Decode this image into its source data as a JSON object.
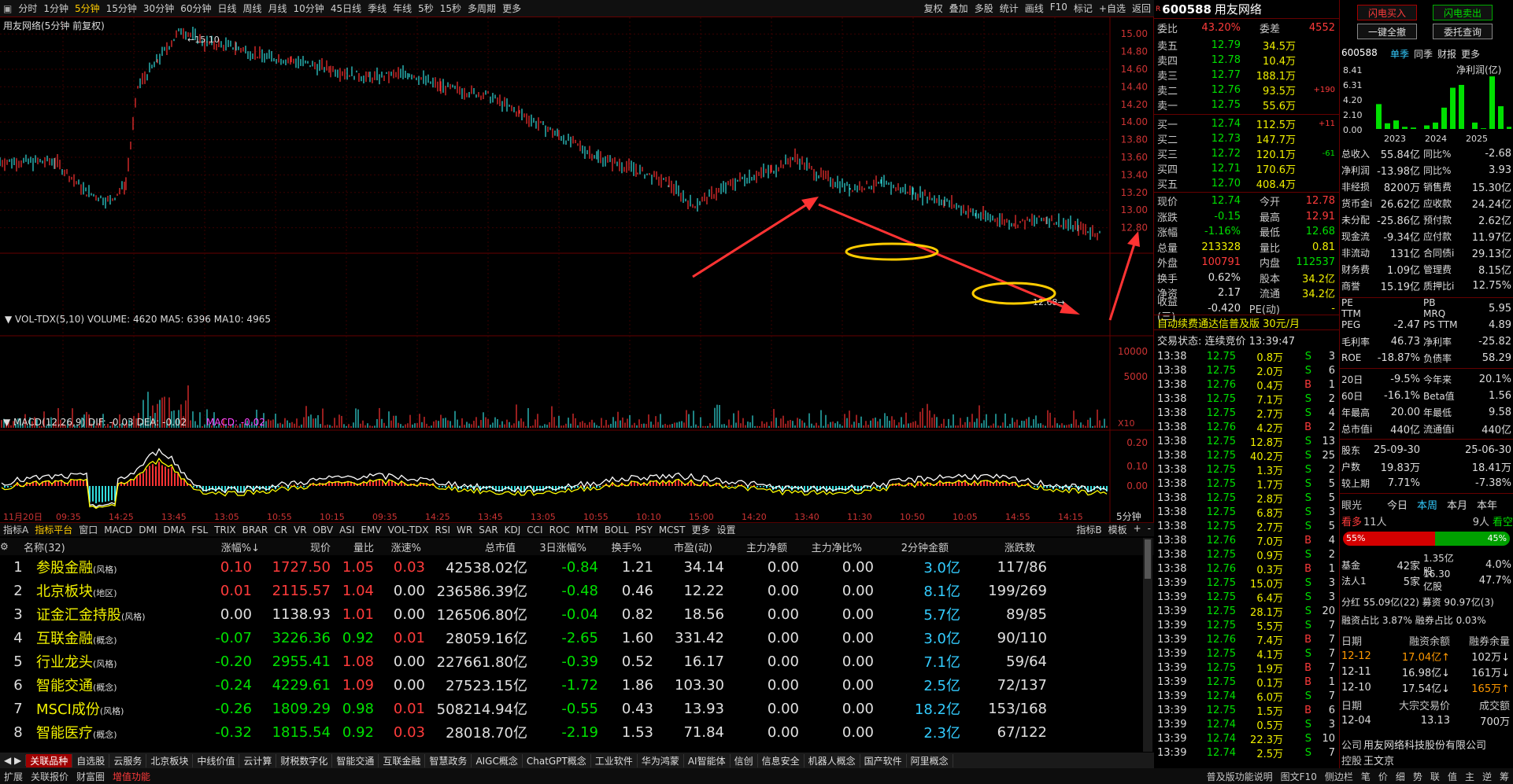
{
  "toolbar": {
    "periods": [
      "分时",
      "1分钟",
      "5分钟",
      "15分钟",
      "30分钟",
      "60分钟",
      "日线",
      "周线",
      "月线",
      "10分钟",
      "45日线",
      "季线",
      "年线",
      "5秒",
      "15秒",
      "多周期",
      "更多"
    ],
    "selected": "5分钟",
    "right": [
      "复权",
      "叠加",
      "多股",
      "统计",
      "画线",
      "F10",
      "标记",
      "+自选",
      "返回"
    ]
  },
  "chart": {
    "title": "用友网络(5分钟 前复权)",
    "high_label": "15.10",
    "low_label": "12.68",
    "price_axis": [
      "15.00",
      "14.80",
      "14.60",
      "14.40",
      "14.20",
      "14.00",
      "13.80",
      "13.60",
      "13.40",
      "13.20",
      "13.00",
      "12.80"
    ],
    "vol_title": "VOL-TDX(5,10)",
    "vol_values": "VOLUME: 4620  MA5: 6396  MA10: 4965",
    "vol_axis": [
      "10000",
      "5000"
    ],
    "vol_unit": "X10",
    "macd_title": "MACD(12,26,9)",
    "macd_dif": "DIF: -0.03",
    "macd_dea": "DEA: -0.02",
    "macd_val": "MACD: -0.02",
    "macd_axis": [
      "0.20",
      "0.10",
      "0.00"
    ],
    "time_labels": [
      "11月20日",
      "09:35",
      "14:25",
      "13:45",
      "13:05",
      "10:55",
      "10:15",
      "09:35",
      "14:25",
      "13:45",
      "13:05",
      "10:55",
      "10:10",
      "15:00",
      "14:20",
      "13:40",
      "11:30",
      "10:50",
      "10:05",
      "14:55",
      "14:15"
    ],
    "period_tag": "5分钟"
  },
  "indicators": [
    "指标A",
    "指标平台",
    "窗口",
    "MACD",
    "DMI",
    "DMA",
    "FSL",
    "TRIX",
    "BRAR",
    "CR",
    "VR",
    "OBV",
    "ASI",
    "EMV",
    "VOL-TDX",
    "RSI",
    "WR",
    "SAR",
    "KDJ",
    "CCI",
    "ROC",
    "MTM",
    "BOLL",
    "PSY",
    "MCST",
    "更多",
    "设置"
  ],
  "indicators_right": [
    "指标B",
    "模板",
    "+",
    "-"
  ],
  "table": {
    "headers": [
      "名称(32)",
      "",
      "涨幅%↓",
      "现价",
      "量比",
      "涨速%",
      "总市值",
      "3日涨幅%",
      "换手%",
      "市盈(动)",
      "主力净额",
      "主力净比%",
      "2分钟金额",
      "涨跌数"
    ],
    "rows": [
      {
        "n": "1",
        "name": "参股金融",
        "tag": "(风格)",
        "chg": "0.10",
        "price": "1727.50",
        "vr": "1.05",
        "spd": "0.03",
        "mv": "42538.02亿",
        "d3": "-0.84",
        "to": "1.21",
        "pe": "34.14",
        "mf": "0.00",
        "mfr": "0.00",
        "amt": "3.0亿",
        "ud": "117/86"
      },
      {
        "n": "2",
        "name": "北京板块",
        "tag": "(地区)",
        "chg": "0.01",
        "price": "2115.57",
        "vr": "1.04",
        "spd": "0.00",
        "mv": "236586.39亿",
        "d3": "-0.48",
        "to": "0.46",
        "pe": "12.22",
        "mf": "0.00",
        "mfr": "0.00",
        "amt": "8.1亿",
        "ud": "199/269"
      },
      {
        "n": "3",
        "name": "证金汇金持股",
        "tag": "(风格)",
        "chg": "0.00",
        "price": "1138.93",
        "vr": "1.01",
        "spd": "0.00",
        "mv": "126506.80亿",
        "d3": "-0.04",
        "to": "0.82",
        "pe": "18.56",
        "mf": "0.00",
        "mfr": "0.00",
        "amt": "5.7亿",
        "ud": "89/85"
      },
      {
        "n": "4",
        "name": "互联金融",
        "tag": "(概念)",
        "chg": "-0.07",
        "price": "3226.36",
        "vr": "0.92",
        "spd": "0.01",
        "mv": "28059.16亿",
        "d3": "-2.65",
        "to": "1.60",
        "pe": "331.42",
        "mf": "0.00",
        "mfr": "0.00",
        "amt": "3.0亿",
        "ud": "90/110"
      },
      {
        "n": "5",
        "name": "行业龙头",
        "tag": "(风格)",
        "chg": "-0.20",
        "price": "2955.41",
        "vr": "1.08",
        "spd": "0.00",
        "mv": "227661.80亿",
        "d3": "-0.39",
        "to": "0.52",
        "pe": "16.17",
        "mf": "0.00",
        "mfr": "0.00",
        "amt": "7.1亿",
        "ud": "59/64"
      },
      {
        "n": "6",
        "name": "智能交通",
        "tag": "(概念)",
        "chg": "-0.24",
        "price": "4229.61",
        "vr": "1.09",
        "spd": "0.00",
        "mv": "27523.15亿",
        "d3": "-1.72",
        "to": "1.86",
        "pe": "103.30",
        "mf": "0.00",
        "mfr": "0.00",
        "amt": "2.5亿",
        "ud": "72/137"
      },
      {
        "n": "7",
        "name": "MSCI成份",
        "tag": "(风格)",
        "chg": "-0.26",
        "price": "1809.29",
        "vr": "0.98",
        "spd": "0.01",
        "mv": "508214.94亿",
        "d3": "-0.55",
        "to": "0.43",
        "pe": "13.93",
        "mf": "0.00",
        "mfr": "0.00",
        "amt": "18.2亿",
        "ud": "153/168"
      },
      {
        "n": "8",
        "name": "智能医疗",
        "tag": "(概念)",
        "chg": "-0.32",
        "price": "1815.54",
        "vr": "0.92",
        "spd": "0.03",
        "mv": "28018.70亿",
        "d3": "-2.19",
        "to": "1.53",
        "pe": "71.84",
        "mf": "0.00",
        "mfr": "0.00",
        "amt": "2.3亿",
        "ud": "67/122"
      }
    ]
  },
  "bottom_tabs": [
    "关联品种",
    "自选股",
    "云服务",
    "北京板块",
    "中线价值",
    "云计算",
    "财税数字化",
    "智能交通",
    "互联金融",
    "智慧政务",
    "AIGC概念",
    "ChatGPT概念",
    "工业软件",
    "华为鸿蒙",
    "AI智能体",
    "信创",
    "信息安全",
    "机器人概念",
    "国产软件",
    "阿里概念"
  ],
  "status": [
    "扩展",
    "关联报价",
    "财富圈",
    "增值功能",
    "普及版功能说明",
    "图文F10",
    "侧边栏",
    "笔",
    "价",
    "细",
    "势",
    "联",
    "值",
    "主",
    "逆",
    "筹"
  ],
  "quote": {
    "code": "600588",
    "name": "用友网络",
    "wb_label": "委比",
    "wb": "43.20%",
    "wc_label": "委差",
    "wc": "4552",
    "sells": [
      {
        "l": "卖五",
        "p": "12.79",
        "v": "34.5万",
        "c": ""
      },
      {
        "l": "卖四",
        "p": "12.78",
        "v": "10.4万",
        "c": ""
      },
      {
        "l": "卖三",
        "p": "12.77",
        "v": "188.1万",
        "c": ""
      },
      {
        "l": "卖二",
        "p": "12.76",
        "v": "93.5万",
        "c": "+190"
      },
      {
        "l": "卖一",
        "p": "12.75",
        "v": "55.6万",
        "c": ""
      }
    ],
    "buys": [
      {
        "l": "买一",
        "p": "12.74",
        "v": "112.5万",
        "c": "+11"
      },
      {
        "l": "买二",
        "p": "12.73",
        "v": "147.7万",
        "c": ""
      },
      {
        "l": "买三",
        "p": "12.72",
        "v": "120.1万",
        "c": "-61"
      },
      {
        "l": "买四",
        "p": "12.71",
        "v": "170.6万",
        "c": ""
      },
      {
        "l": "买五",
        "p": "12.70",
        "v": "408.4万",
        "c": ""
      }
    ],
    "stats": [
      [
        "现价",
        "12.74",
        "今开",
        "12.78"
      ],
      [
        "涨跌",
        "-0.15",
        "最高",
        "12.91"
      ],
      [
        "涨幅",
        "-1.16%",
        "最低",
        "12.68"
      ],
      [
        "总量",
        "213328",
        "量比",
        "0.81"
      ],
      [
        "外盘",
        "100791",
        "内盘",
        "112537"
      ],
      [
        "换手",
        "0.62%",
        "股本",
        "34.2亿"
      ],
      [
        "净资",
        "2.17",
        "流通",
        "34.2亿"
      ],
      [
        "收益(三)",
        "-0.420",
        "PE(动)",
        "-"
      ]
    ],
    "ad": "自动续费通达信普及版 30元/月",
    "trade_state": "交易状态: 连续竞价 13:39:47"
  },
  "ticks": [
    [
      "13:38",
      "12.75",
      "0.8万",
      "S",
      "3"
    ],
    [
      "13:38",
      "12.75",
      "2.0万",
      "S",
      "6"
    ],
    [
      "13:38",
      "12.76",
      "0.4万",
      "B",
      "1"
    ],
    [
      "13:38",
      "12.75",
      "7.1万",
      "S",
      "2"
    ],
    [
      "13:38",
      "12.75",
      "2.7万",
      "S",
      "4"
    ],
    [
      "13:38",
      "12.76",
      "4.2万",
      "B",
      "2"
    ],
    [
      "13:38",
      "12.75",
      "12.8万",
      "S",
      "13"
    ],
    [
      "13:38",
      "12.75",
      "40.2万",
      "S",
      "25"
    ],
    [
      "13:38",
      "12.75",
      "1.3万",
      "S",
      "2"
    ],
    [
      "13:38",
      "12.75",
      "1.7万",
      "S",
      "5"
    ],
    [
      "13:38",
      "12.75",
      "2.8万",
      "S",
      "5"
    ],
    [
      "13:38",
      "12.75",
      "6.8万",
      "S",
      "3"
    ],
    [
      "13:38",
      "12.75",
      "2.7万",
      "S",
      "5"
    ],
    [
      "13:38",
      "12.76",
      "7.0万",
      "B",
      "4"
    ],
    [
      "13:38",
      "12.75",
      "0.9万",
      "S",
      "2"
    ],
    [
      "13:38",
      "12.76",
      "0.3万",
      "B",
      "1"
    ],
    [
      "13:39",
      "12.75",
      "15.0万",
      "S",
      "3"
    ],
    [
      "13:39",
      "12.75",
      "6.4万",
      "S",
      "3"
    ],
    [
      "13:39",
      "12.75",
      "28.1万",
      "S",
      "20"
    ],
    [
      "13:39",
      "12.75",
      "5.5万",
      "S",
      "7"
    ],
    [
      "13:39",
      "12.76",
      "7.4万",
      "B",
      "7"
    ],
    [
      "13:39",
      "12.75",
      "4.1万",
      "S",
      "7"
    ],
    [
      "13:39",
      "12.75",
      "1.9万",
      "B",
      "7"
    ],
    [
      "13:39",
      "12.75",
      "0.1万",
      "B",
      "1"
    ],
    [
      "13:39",
      "12.74",
      "6.0万",
      "S",
      "7"
    ],
    [
      "13:39",
      "12.75",
      "1.5万",
      "B",
      "6"
    ],
    [
      "13:39",
      "12.74",
      "0.5万",
      "S",
      "3"
    ],
    [
      "13:39",
      "12.74",
      "22.3万",
      "S",
      "10"
    ],
    [
      "13:39",
      "12.74",
      "2.5万",
      "S",
      "7"
    ]
  ],
  "fin": {
    "btn_buy": "闪电买入",
    "btn_sell": "闪电卖出",
    "btn_cancel": "一键全撤",
    "btn_query": "委托查询",
    "code": "600588",
    "tabs": [
      "单季",
      "同季",
      "财报",
      "更多"
    ],
    "chart_title": "净利润(亿)",
    "yaxis": [
      "8.41",
      "6.31",
      "4.20",
      "2.10",
      "0.00"
    ],
    "years": [
      "2023",
      "2024",
      "2025"
    ],
    "bars": [
      3.5,
      0.8,
      1.2,
      0.3,
      0.2,
      0.5,
      0.9,
      3.0,
      5.8,
      6.2,
      0.9,
      0.1,
      7.4,
      3.2,
      0.3
    ],
    "rows": [
      [
        "总收入",
        "55.84亿",
        "同比%",
        "-2.68"
      ],
      [
        "净利润",
        "-13.98亿",
        "同比%",
        "3.93"
      ],
      [
        "非经损",
        "8200万",
        "销售费",
        "15.30亿"
      ],
      [
        "货币金i",
        "26.62亿",
        "应收款",
        "24.24亿"
      ],
      [
        "未分配",
        "-25.86亿",
        "预付款",
        "2.62亿"
      ],
      [
        "现金流",
        "-9.34亿",
        "应付款",
        "11.97亿"
      ],
      [
        "非流动",
        "131亿",
        "合同债i",
        "29.13亿"
      ],
      [
        "财务费",
        "1.09亿",
        "管理费",
        "8.15亿"
      ],
      [
        "商誉",
        "15.19亿",
        "质押比i",
        "12.75%"
      ]
    ],
    "rows2": [
      [
        "PE TTM",
        "",
        "PB MRQ",
        "5.95"
      ],
      [
        "PEG",
        "-2.47",
        "PS TTM",
        "4.89"
      ],
      [
        "毛利率",
        "46.73",
        "净利率",
        "-25.82"
      ],
      [
        "ROE",
        "-18.87%",
        "负债率",
        "58.29"
      ]
    ],
    "rows3": [
      [
        "20日",
        "-9.5%",
        "今年来",
        "20.1%"
      ],
      [
        "60日",
        "-16.1%",
        "Beta值",
        "1.56"
      ],
      [
        "年最高",
        "20.00",
        "年最低",
        "9.58"
      ],
      [
        "总市值i",
        "440亿",
        "流通值i",
        "440亿"
      ]
    ],
    "rows4": [
      [
        "股东",
        "25-09-30",
        "",
        "25-06-30"
      ],
      [
        "户数",
        "19.83万",
        "",
        "18.41万"
      ],
      [
        "较上期",
        "7.71%",
        "",
        "-7.38%"
      ]
    ],
    "eye": {
      "label": "眼光",
      "tabs": [
        "今日",
        "本周",
        "本月",
        "本年"
      ],
      "bull": "看多",
      "bull_n": "11人",
      "bear_n": "9人",
      "bear": "看空",
      "pct_bull": "55%",
      "pct_bear": "45%"
    },
    "rows5": [
      [
        "基金",
        "42家",
        "1.35亿股",
        "4.0%"
      ],
      [
        "法人1",
        "5家",
        "16.30亿股",
        "47.7%"
      ]
    ],
    "dividend": "分红 55.09亿(22) 募资 90.97亿(3)",
    "margin_ratio": "融资占比 3.87% 融券占比 0.03%",
    "margin_head": [
      "日期",
      "融资余额",
      "融券余量"
    ],
    "margin": [
      [
        "12-12",
        "17.04亿↑",
        "102万↓"
      ],
      [
        "12-11",
        "16.98亿↓",
        "161万↓"
      ],
      [
        "12-10",
        "17.54亿↓",
        "165万↑"
      ]
    ],
    "block_head": [
      "日期",
      "大宗交易价",
      "成交额"
    ],
    "block": [
      [
        "12-04",
        "13.13",
        "700万"
      ]
    ],
    "company_label": "公司",
    "company": "用友网络科技股份有限公司",
    "holder_label": "控股",
    "holder": "王文京"
  }
}
